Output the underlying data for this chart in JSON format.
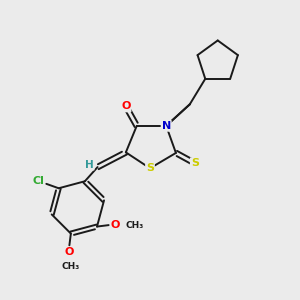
{
  "bg_color": "#ebebeb",
  "bond_color": "#1a1a1a",
  "atom_colors": {
    "O": "#ff0000",
    "N": "#0000cc",
    "S": "#cccc00",
    "Cl": "#33aa33",
    "H": "#339999",
    "C": "#1a1a1a"
  },
  "font_size": 8.0,
  "lw": 1.4
}
